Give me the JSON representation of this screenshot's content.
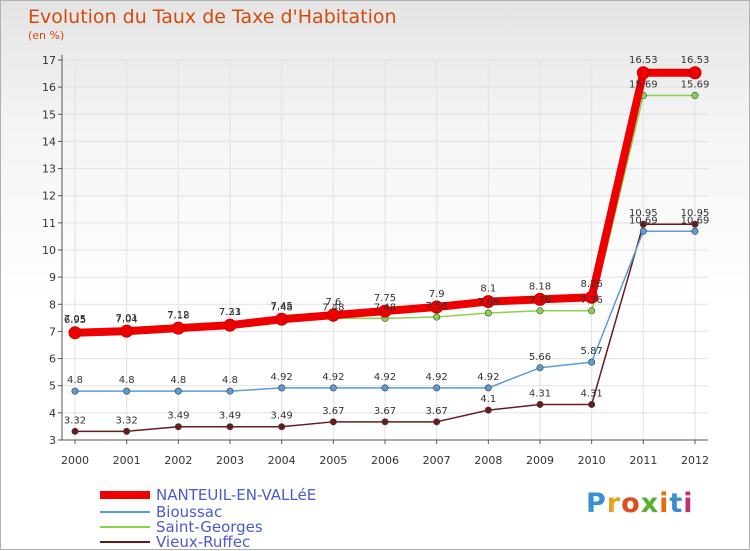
{
  "title": "Evolution du Taux de Taxe d'Habitation",
  "unit": "(en %)",
  "logo": "Proxiti",
  "chart_data": {
    "type": "line",
    "title": "Evolution du Taux de Taxe d'Habitation",
    "ylabel": "(en %)",
    "xlabel": "",
    "categories": [
      "2000",
      "2001",
      "2002",
      "2003",
      "2004",
      "2005",
      "2006",
      "2007",
      "2008",
      "2009",
      "2010",
      "2011",
      "2012"
    ],
    "ylim": [
      3,
      17
    ],
    "yticks": [
      3,
      4,
      5,
      6,
      7,
      8,
      9,
      10,
      11,
      12,
      13,
      14,
      15,
      16,
      17
    ],
    "series": [
      {
        "name": "NANTEUIL-EN-VALLéE",
        "color": "#ee0000",
        "values": [
          6.95,
          7.01,
          7.12,
          7.23,
          7.45,
          7.6,
          7.75,
          7.9,
          8.1,
          8.18,
          8.26,
          16.53,
          16.53
        ]
      },
      {
        "name": "Bioussac",
        "color": "#5b9bd5",
        "values": [
          4.8,
          4.8,
          4.8,
          4.8,
          4.92,
          4.92,
          4.92,
          4.92,
          4.92,
          5.66,
          5.87,
          10.69,
          10.69
        ]
      },
      {
        "name": "Saint-Georges",
        "color": "#88d44a",
        "values": [
          7.05,
          7.04,
          7.18,
          7.31,
          7.48,
          7.48,
          7.48,
          7.53,
          7.68,
          7.76,
          7.76,
          15.69,
          15.69
        ]
      },
      {
        "name": "Vieux-Ruffec",
        "color": "#6b1a1a",
        "values": [
          3.32,
          3.32,
          3.49,
          3.49,
          3.49,
          3.67,
          3.67,
          3.67,
          4.1,
          4.31,
          4.31,
          10.95,
          10.95
        ]
      }
    ],
    "labels": [
      [
        "7.05",
        "7.04",
        "7.18",
        "7.31",
        "7.48",
        "7.48",
        "7.48",
        "7.53",
        "7.68",
        "7.76",
        "7.76",
        "15.69",
        "15.69"
      ],
      [
        "6.95",
        "7.01",
        "7.12",
        "7.23",
        "7.45",
        "7.6",
        "7.75",
        "7.9",
        "8.1",
        "8.18",
        "8.26",
        "16.53",
        "16.53"
      ],
      [
        "4.8",
        "4.8",
        "4.8",
        "4.8",
        "4.92",
        "4.92",
        "4.92",
        "4.92",
        "4.92",
        "5.66",
        "5.87",
        "10.69",
        "10.69"
      ],
      [
        "3.32",
        "3.32",
        "3.49",
        "3.49",
        "3.49",
        "3.67",
        "3.67",
        "3.67",
        "4.1",
        "4.31",
        "4.31",
        "10.95",
        "10.95"
      ]
    ],
    "legend": "bottom-left"
  }
}
